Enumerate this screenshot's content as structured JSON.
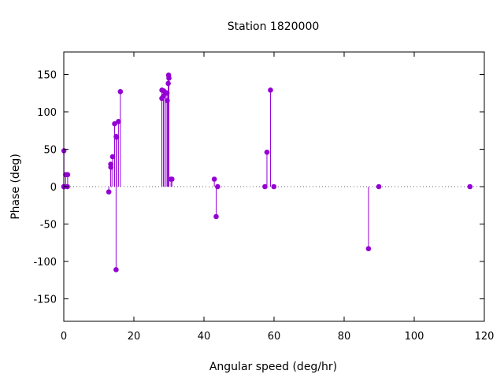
{
  "chart_data": {
    "type": "scatter",
    "title": "Station 1820000",
    "xlabel": "Angular speed (deg/hr)",
    "ylabel": "Phase (deg)",
    "xlim": [
      0,
      120
    ],
    "ylim": [
      -180,
      180
    ],
    "x_ticks": [
      0,
      20,
      40,
      60,
      80,
      100,
      120
    ],
    "y_ticks": [
      -150,
      -100,
      -50,
      0,
      50,
      100,
      150
    ],
    "grid": false,
    "zero_line": "dotted",
    "style": "impulses-with-points",
    "color": "#9400d3",
    "series": [
      {
        "points": [
          {
            "x": 0.0,
            "y": 0
          },
          {
            "x": 0.04,
            "y": 48
          },
          {
            "x": 0.08,
            "y": 0
          },
          {
            "x": 0.54,
            "y": 16
          },
          {
            "x": 1.02,
            "y": 0
          },
          {
            "x": 1.1,
            "y": 16
          },
          {
            "x": 12.85,
            "y": -7
          },
          {
            "x": 13.4,
            "y": 30
          },
          {
            "x": 13.43,
            "y": 26
          },
          {
            "x": 13.94,
            "y": 40
          },
          {
            "x": 14.5,
            "y": 84
          },
          {
            "x": 14.96,
            "y": 67
          },
          {
            "x": 14.92,
            "y": -111
          },
          {
            "x": 15.04,
            "y": 66
          },
          {
            "x": 15.59,
            "y": 87
          },
          {
            "x": 16.14,
            "y": 127
          },
          {
            "x": 27.97,
            "y": 118
          },
          {
            "x": 28.0,
            "y": 129
          },
          {
            "x": 28.44,
            "y": 121
          },
          {
            "x": 28.51,
            "y": 128
          },
          {
            "x": 28.99,
            "y": 126
          },
          {
            "x": 29.46,
            "y": 125
          },
          {
            "x": 29.53,
            "y": 115
          },
          {
            "x": 29.8,
            "y": 138
          },
          {
            "x": 29.9,
            "y": 149
          },
          {
            "x": 30.0,
            "y": 145
          },
          {
            "x": 30.6,
            "y": 10
          },
          {
            "x": 30.85,
            "y": 10
          },
          {
            "x": 42.95,
            "y": 10
          },
          {
            "x": 43.48,
            "y": -40
          },
          {
            "x": 43.9,
            "y": 0
          },
          {
            "x": 57.4,
            "y": 0
          },
          {
            "x": 57.97,
            "y": 46
          },
          {
            "x": 58.98,
            "y": 129
          },
          {
            "x": 59.95,
            "y": 0
          },
          {
            "x": 86.95,
            "y": -83
          },
          {
            "x": 89.9,
            "y": 0
          },
          {
            "x": 115.9,
            "y": 0
          }
        ]
      }
    ]
  }
}
